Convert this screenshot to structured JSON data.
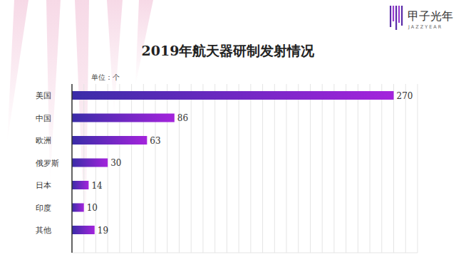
{
  "chart_data": {
    "type": "bar",
    "orientation": "horizontal",
    "title": "2019年航天器研制发射情况",
    "unit_label": "单位：个",
    "categories": [
      "美国",
      "中国",
      "欧洲",
      "俄罗斯",
      "日本",
      "印度",
      "其他"
    ],
    "values": [
      270,
      86,
      63,
      30,
      14,
      10,
      19
    ],
    "color": "#a424dc",
    "xlim": [
      0,
      290
    ],
    "xticks": [
      0,
      10,
      20,
      30,
      40,
      50,
      60,
      70,
      80,
      90,
      100,
      110,
      120,
      130,
      140,
      150,
      160,
      170,
      180,
      190,
      200,
      210,
      220,
      230,
      240,
      250,
      260,
      270,
      280,
      290
    ],
    "grid": true,
    "data_labels": true,
    "tick_labels": "y"
  },
  "brand": {
    "name": "甲子光年",
    "tagline": "JAZZYEAR"
  }
}
